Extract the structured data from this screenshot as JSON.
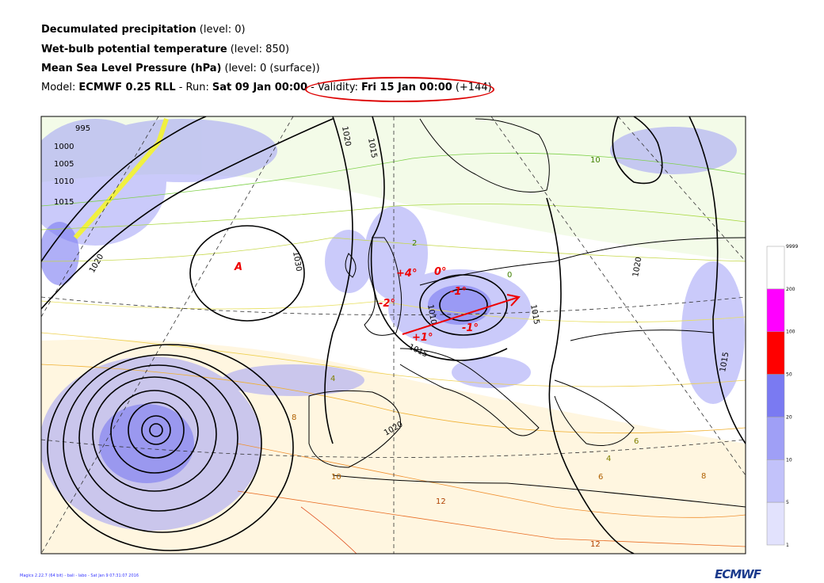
{
  "header": {
    "lines": [
      [
        {
          "text": "Decumulated precipitation",
          "bold": true
        },
        {
          "text": "(level: 0)",
          "bold": false
        }
      ],
      [
        {
          "text": "Wet-bulb potential temperature",
          "bold": true
        },
        {
          "text": "(level: 850)",
          "bold": false
        }
      ],
      [
        {
          "text": "Mean Sea Level Pressure (hPa)",
          "bold": true
        },
        {
          "text": "(level: 0 (surface))",
          "bold": false
        }
      ],
      [
        {
          "text": "Model:",
          "bold": false
        },
        {
          "text": "ECMWF 0.25 RLL",
          "bold": true
        },
        {
          "text": "- Run:",
          "bold": false
        },
        {
          "text": "Sat 09 Jan 00:00",
          "bold": true
        },
        {
          "text": "-",
          "bold": false
        },
        {
          "text": "Validity:",
          "bold": false
        },
        {
          "text": "Fri 15 Jan 00:00",
          "bold": true
        },
        {
          "text": "(+144)",
          "bold": false
        }
      ]
    ]
  },
  "map": {
    "pressure_labels": [
      "995",
      "1000",
      "1005",
      "1010",
      "1015",
      "1020",
      "1030",
      "1020",
      "1015",
      "1015",
      "1020",
      "1010",
      "1015",
      "1020",
      "1015"
    ],
    "temperature_labels": [
      "4",
      "8",
      "10",
      "12",
      "6",
      "2",
      "0",
      "4",
      "6",
      "8",
      "10",
      "12"
    ],
    "annotations": [
      "A",
      "+4°",
      "0°",
      "-2°",
      "-1°",
      "-1°",
      "+1°"
    ]
  },
  "legend": {
    "labels": [
      "9999",
      "200",
      "100",
      "50",
      "20",
      "10",
      "5",
      "1"
    ],
    "colors": [
      "#ffffff",
      "#ff00ff",
      "#ff0000",
      "#7a7af2",
      "#9f9ff6",
      "#c2c2fa",
      "#e2e2fd"
    ]
  },
  "footer": {
    "credit": "Magics 2.22.7 (64 bit) - bali - labo - Sat Jan  9 07:31:07 2016",
    "logo": "ECMWF"
  }
}
